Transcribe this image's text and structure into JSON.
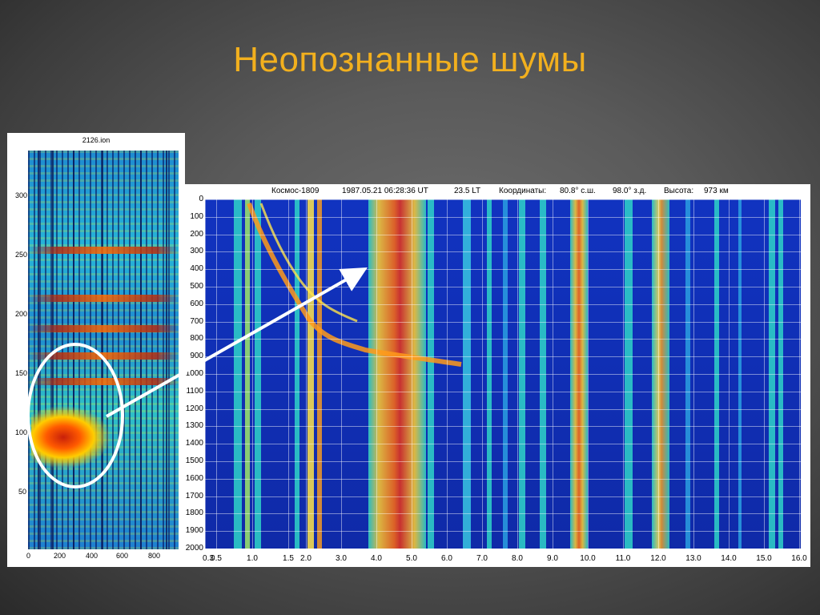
{
  "slide": {
    "title": "Неопознанные шумы"
  },
  "left_panel": {
    "title": "2126.ion",
    "y_ticks": [
      "300",
      "250",
      "200",
      "150",
      "100",
      "50"
    ],
    "x_ticks": [
      "0",
      "200",
      "400",
      "600",
      "800"
    ]
  },
  "main_panel": {
    "satellite": "Космос-1809",
    "datetime": "1987.05.21 06:28:36 UT",
    "local_time": "23.5 LT",
    "coords_label": "Координаты:",
    "lat": "80.8° с.ш.",
    "lon": "98.0° з.д.",
    "alt_label": "Высота:",
    "alt": "973 км",
    "y_ticks": [
      "0",
      "100",
      "200",
      "300",
      "400",
      "500",
      "600",
      "700",
      "800",
      "900",
      "1000",
      "1100",
      "1200",
      "1300",
      "1400",
      "1500",
      "1600",
      "1700",
      "1800",
      "1900",
      "2000"
    ],
    "x_ticks": [
      "0.3",
      "0.5",
      "1.0",
      "1.5",
      "2.0",
      "3.0",
      "4.0",
      "5.0",
      "6.0",
      "7.0",
      "8.0",
      "9.0",
      "10.0",
      "11.0",
      "12.0",
      "13.0",
      "14.0",
      "15.0",
      "16.0"
    ]
  },
  "colors": {
    "title": "#f2b01e",
    "arrow": "#ffffff"
  }
}
